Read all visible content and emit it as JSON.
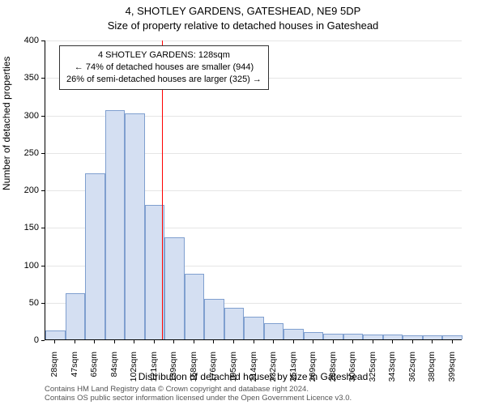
{
  "title_line1": "4, SHOTLEY GARDENS, GATESHEAD, NE9 5DP",
  "title_line2": "Size of property relative to detached houses in Gateshead",
  "yaxis_label": "Number of detached properties",
  "xaxis_label": "Distribution of detached houses by size in Gateshead",
  "chart": {
    "type": "histogram",
    "background_color": "#ffffff",
    "grid_color": "#e5e5e5",
    "axis_color": "#000000",
    "bar_fill": "#d4dff2",
    "bar_border": "#7f9fcf",
    "marker_color": "#ff0000",
    "marker_x_value": 128,
    "ylim": [
      0,
      400
    ],
    "ytick_step": 50,
    "x_start": 28,
    "x_step_approx": 18.55,
    "x_count": 21,
    "x_unit": "sqm",
    "bars": [
      {
        "label": "28sqm",
        "value": 12
      },
      {
        "label": "47sqm",
        "value": 62
      },
      {
        "label": "65sqm",
        "value": 222
      },
      {
        "label": "84sqm",
        "value": 306
      },
      {
        "label": "102sqm",
        "value": 302
      },
      {
        "label": "121sqm",
        "value": 180
      },
      {
        "label": "139sqm",
        "value": 136
      },
      {
        "label": "158sqm",
        "value": 88
      },
      {
        "label": "176sqm",
        "value": 54
      },
      {
        "label": "195sqm",
        "value": 42
      },
      {
        "label": "214sqm",
        "value": 30
      },
      {
        "label": "232sqm",
        "value": 22
      },
      {
        "label": "251sqm",
        "value": 14
      },
      {
        "label": "269sqm",
        "value": 10
      },
      {
        "label": "288sqm",
        "value": 8
      },
      {
        "label": "306sqm",
        "value": 8
      },
      {
        "label": "325sqm",
        "value": 6
      },
      {
        "label": "343sqm",
        "value": 6
      },
      {
        "label": "362sqm",
        "value": 5
      },
      {
        "label": "380sqm",
        "value": 5
      },
      {
        "label": "399sqm",
        "value": 5
      }
    ]
  },
  "annotation": {
    "line1": "4 SHOTLEY GARDENS: 128sqm",
    "line2": "← 74% of detached houses are smaller (944)",
    "line3": "26% of semi-detached houses are larger (325) →"
  },
  "footnote_line1": "Contains HM Land Registry data © Crown copyright and database right 2024.",
  "footnote_line2": "Contains OS public sector information licensed under the Open Government Licence v3.0."
}
